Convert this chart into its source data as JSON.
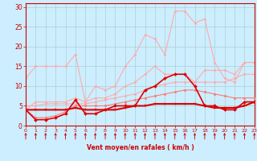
{
  "x": [
    0,
    1,
    2,
    3,
    4,
    5,
    6,
    7,
    8,
    9,
    10,
    11,
    12,
    13,
    14,
    15,
    16,
    17,
    18,
    19,
    20,
    21,
    22,
    23
  ],
  "series": [
    {
      "y": [
        12,
        15,
        15,
        15,
        15,
        18,
        6,
        10,
        9,
        10,
        15,
        18,
        23,
        22,
        18,
        29,
        29,
        26,
        27,
        16,
        12,
        11,
        16,
        16
      ],
      "color": "#ffaaaa",
      "lw": 0.8,
      "marker": "o",
      "ms": 1.8,
      "zorder": 2
    },
    {
      "y": [
        4,
        6,
        6,
        6,
        6,
        7,
        6,
        7,
        7,
        8,
        10,
        11,
        13,
        15,
        13,
        13,
        13,
        11,
        14,
        14,
        14,
        13,
        16,
        16
      ],
      "color": "#ffaaaa",
      "lw": 0.8,
      "marker": "o",
      "ms": 1.8,
      "zorder": 2
    },
    {
      "y": [
        4,
        1.5,
        1.5,
        2,
        3,
        6.5,
        3,
        3,
        4,
        5,
        5,
        5,
        9,
        10,
        12,
        13,
        13,
        10,
        5,
        5,
        4,
        4,
        6,
        6
      ],
      "color": "#dd0000",
      "lw": 1.2,
      "marker": "D",
      "ms": 2.0,
      "zorder": 4
    },
    {
      "y": [
        4,
        4,
        4,
        4,
        4,
        4.5,
        4,
        4,
        4,
        4,
        4.5,
        5,
        5,
        5.5,
        5.5,
        5.5,
        5.5,
        5.5,
        5,
        4.5,
        4.5,
        4.5,
        5,
        6
      ],
      "color": "#dd0000",
      "lw": 1.5,
      "marker": "s",
      "ms": 1.8,
      "zorder": 4
    },
    {
      "y": [
        4,
        2,
        2,
        2.5,
        3.5,
        5,
        5,
        5,
        5,
        5.5,
        6,
        6.5,
        7,
        7.5,
        8,
        8.5,
        9,
        9,
        8.5,
        8,
        7.5,
        7,
        7,
        7
      ],
      "color": "#ff7777",
      "lw": 0.8,
      "marker": "o",
      "ms": 1.8,
      "zorder": 3
    },
    {
      "y": [
        5,
        5,
        5.5,
        5.5,
        5.5,
        5.5,
        5.5,
        6,
        6.5,
        7,
        7.5,
        8,
        9,
        10,
        10.5,
        11,
        11,
        11,
        11,
        11,
        11,
        12,
        13,
        13
      ],
      "color": "#ffaaaa",
      "lw": 0.8,
      "marker": "o",
      "ms": 1.8,
      "zorder": 2
    }
  ],
  "xlabel": "Vent moyen/en rafales ( km/h )",
  "ylim": [
    0,
    31
  ],
  "xlim": [
    0,
    23
  ],
  "yticks": [
    0,
    5,
    10,
    15,
    20,
    25,
    30
  ],
  "xticks": [
    0,
    1,
    2,
    3,
    4,
    5,
    6,
    7,
    8,
    9,
    10,
    11,
    12,
    13,
    14,
    15,
    16,
    17,
    18,
    19,
    20,
    21,
    22,
    23
  ],
  "bg_color": "#cceeff",
  "grid_color": "#aacccc",
  "xlabel_color": "#cc0000",
  "tick_color": "#cc0000",
  "arrow_color": "#cc0000",
  "spine_color": "#cc0000"
}
